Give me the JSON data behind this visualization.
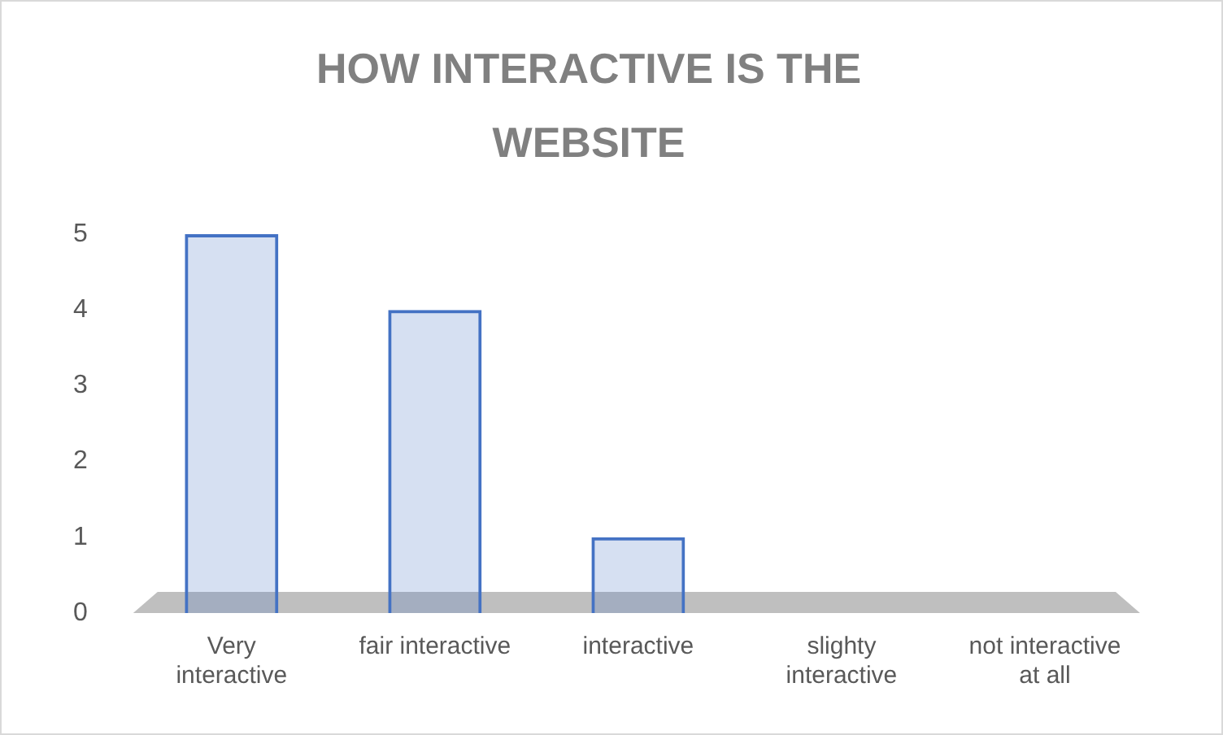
{
  "chart_data": {
    "type": "bar",
    "title": "HOW INTERACTIVE IS THE WEBSITE",
    "categories": [
      "Very interactive",
      "fair interactive",
      "interactive",
      "slighty interactive",
      "not interactive at all"
    ],
    "values": [
      5,
      4,
      1,
      0,
      0
    ],
    "color": "#4472c4",
    "ylim": [
      0,
      5
    ],
    "yticks": [
      0,
      1,
      2,
      3,
      4,
      5
    ]
  }
}
